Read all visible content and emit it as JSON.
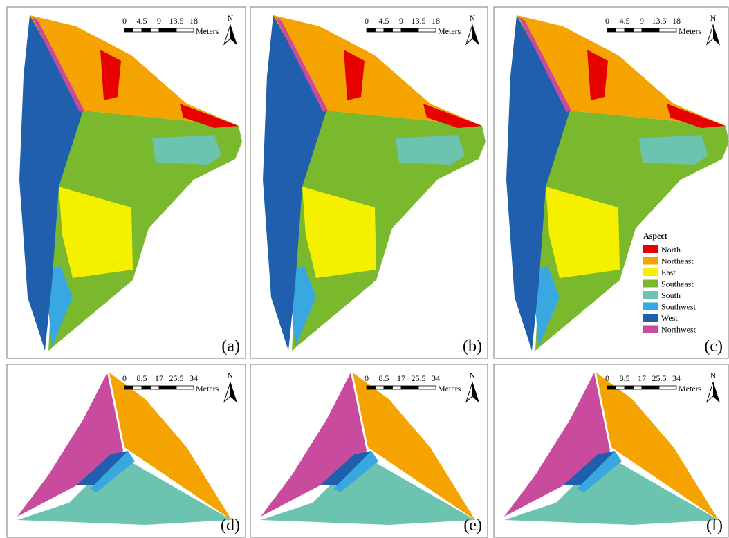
{
  "panels": [
    {
      "label": "(a)",
      "scale": {
        "ticks": [
          0,
          4.5,
          9,
          13.5,
          18
        ],
        "unit": "Meters"
      },
      "north": "N"
    },
    {
      "label": "(b)",
      "scale": {
        "ticks": [
          0,
          4.5,
          9,
          13.5,
          18
        ],
        "unit": "Meters"
      },
      "north": "N"
    },
    {
      "label": "(c)",
      "scale": {
        "ticks": [
          0,
          4.5,
          9,
          13.5,
          18
        ],
        "unit": "Meters"
      },
      "north": "N"
    },
    {
      "label": "(d)",
      "scale": {
        "ticks": [
          0,
          8.5,
          17,
          25.5,
          34
        ],
        "unit": "Meters"
      },
      "north": "N"
    },
    {
      "label": "(e)",
      "scale": {
        "ticks": [
          0,
          8.5,
          17,
          25.5,
          34
        ],
        "unit": "Meters"
      },
      "north": "N"
    },
    {
      "label": "(f)",
      "scale": {
        "ticks": [
          0,
          8.5,
          17,
          25.5,
          34
        ],
        "unit": "Meters"
      },
      "north": "N"
    }
  ],
  "legend": {
    "title": "Aspect",
    "items": [
      {
        "name": "North",
        "color": "#e60000"
      },
      {
        "name": "Northeast",
        "color": "#f5a300"
      },
      {
        "name": "East",
        "color": "#f5f000"
      },
      {
        "name": "Southeast",
        "color": "#7ab82e"
      },
      {
        "name": "South",
        "color": "#6cc4b0"
      },
      {
        "name": "Southwest",
        "color": "#3aa8e0"
      },
      {
        "name": "West",
        "color": "#1f5fae"
      },
      {
        "name": "Northwest",
        "color": "#c84b9e"
      }
    ]
  }
}
